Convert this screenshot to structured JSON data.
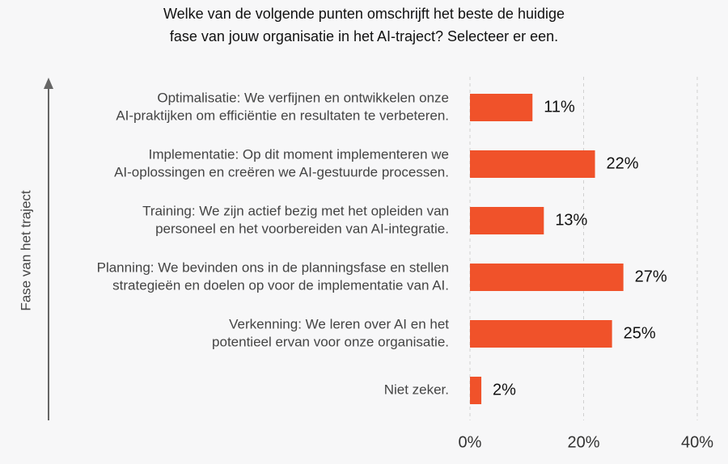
{
  "chart_data": {
    "type": "hbar",
    "title": [
      "Welke van de volgende punten omschrijft het beste de huidige",
      "fase van jouw organisatie in het AI-traject? Selecteer er een."
    ],
    "y_label": "Fase van het traject",
    "categories": [
      [
        "Optimalisatie: We verfijnen en ontwikkelen onze",
        "AI-praktijken om efficiëntie en resultaten te verbeteren."
      ],
      [
        "Implementatie: Op dit moment implementeren we",
        "AI-oplossingen en creëren we AI-gestuurde processen."
      ],
      [
        "Training: We zijn actief bezig met het opleiden van",
        "personeel en het voorbereiden van AI-integratie."
      ],
      [
        "Planning: We bevinden ons in de planningsfase en stellen",
        "strategieën en doelen op voor de implementatie van AI."
      ],
      [
        "Verkenning: We leren over AI en het",
        "potentieel ervan voor onze organisatie."
      ],
      [
        "Niet zeker."
      ]
    ],
    "values": [
      11,
      22,
      13,
      27,
      25,
      2
    ],
    "value_labels": [
      "11%",
      "22%",
      "13%",
      "27%",
      "25%",
      "2%"
    ],
    "color": "#f0522a",
    "xlim": [
      0,
      40
    ],
    "xticks": [
      {
        "value": 0,
        "label": "0%"
      },
      {
        "value": 20,
        "label": "20%"
      },
      {
        "value": 40,
        "label": "40%"
      }
    ],
    "grid": true
  }
}
